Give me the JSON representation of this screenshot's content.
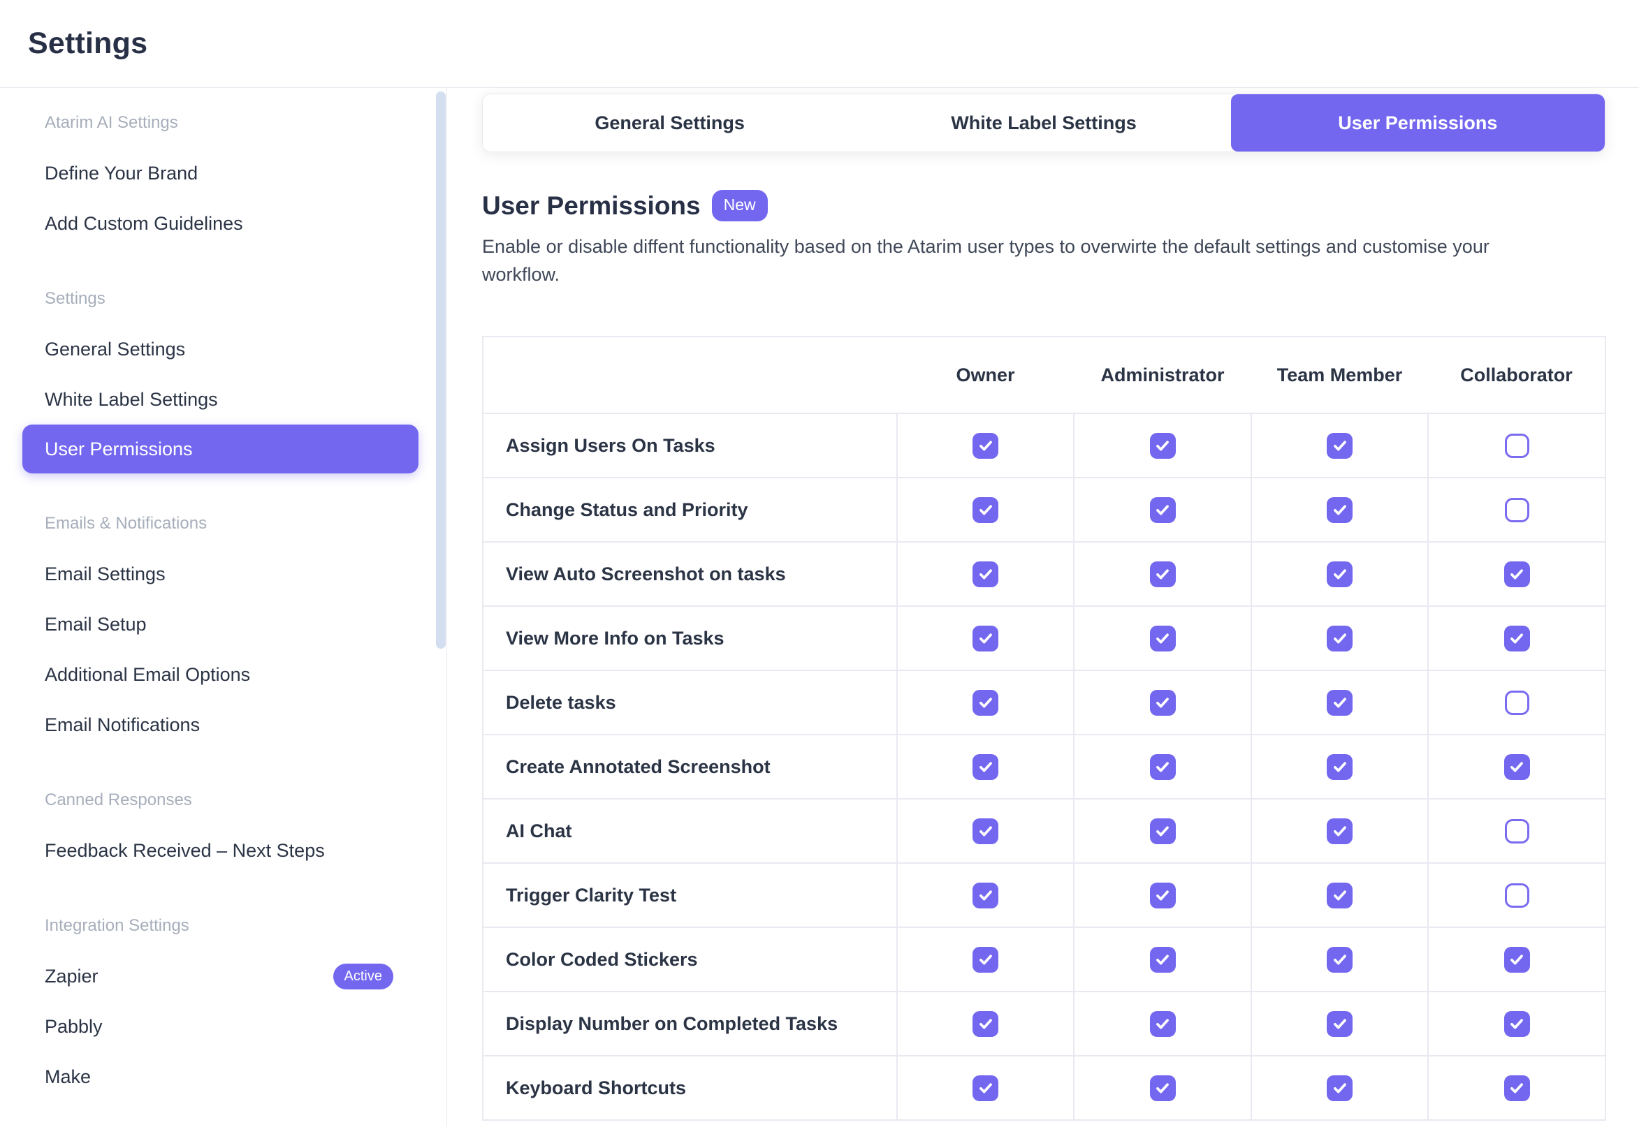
{
  "header": {
    "title": "Settings"
  },
  "colors": {
    "accent": "#7367F0",
    "text_dark": "#2b3445",
    "text_muted": "#a7aebb",
    "description_text": "#3f4757",
    "table_border": "#eae8f1",
    "scroll_track": "#d3dff0"
  },
  "sidebar": {
    "sections": [
      {
        "label": "Atarim AI Settings",
        "items": [
          {
            "label": "Define Your Brand"
          },
          {
            "label": "Add Custom Guidelines"
          }
        ]
      },
      {
        "label": "Settings",
        "items": [
          {
            "label": "General Settings"
          },
          {
            "label": "White Label Settings"
          },
          {
            "label": "User Permissions",
            "active": true
          }
        ]
      },
      {
        "label": "Emails & Notifications",
        "items": [
          {
            "label": "Email Settings"
          },
          {
            "label": "Email Setup"
          },
          {
            "label": "Additional Email Options"
          },
          {
            "label": "Email Notifications"
          }
        ]
      },
      {
        "label": "Canned Responses",
        "items": [
          {
            "label": "Feedback Received – Next Steps"
          }
        ]
      },
      {
        "label": "Integration Settings",
        "items": [
          {
            "label": "Zapier",
            "badge": "Active"
          },
          {
            "label": "Pabbly"
          },
          {
            "label": "Make"
          }
        ]
      }
    ]
  },
  "tabs": [
    {
      "label": "General Settings"
    },
    {
      "label": "White Label Settings"
    },
    {
      "label": "User Permissions",
      "active": true
    }
  ],
  "content": {
    "title": "User Permissions",
    "badge": "New",
    "description": "Enable or disable diffent functionality based on the Atarim user types to overwirte the default settings and customise your workflow."
  },
  "table": {
    "columns": [
      "Owner",
      "Administrator",
      "Team Member",
      "Collaborator"
    ],
    "rows": [
      {
        "label": "Assign Users On Tasks",
        "permissions": [
          true,
          true,
          true,
          false
        ]
      },
      {
        "label": "Change Status and Priority",
        "permissions": [
          true,
          true,
          true,
          false
        ]
      },
      {
        "label": "View Auto Screenshot on tasks",
        "permissions": [
          true,
          true,
          true,
          true
        ]
      },
      {
        "label": "View More Info on Tasks",
        "permissions": [
          true,
          true,
          true,
          true
        ]
      },
      {
        "label": "Delete tasks",
        "permissions": [
          true,
          true,
          true,
          false
        ]
      },
      {
        "label": "Create Annotated Screenshot",
        "permissions": [
          true,
          true,
          true,
          true
        ]
      },
      {
        "label": "AI Chat",
        "permissions": [
          true,
          true,
          true,
          false
        ]
      },
      {
        "label": "Trigger Clarity Test",
        "permissions": [
          true,
          true,
          true,
          false
        ]
      },
      {
        "label": "Color Coded Stickers",
        "permissions": [
          true,
          true,
          true,
          true
        ]
      },
      {
        "label": "Display Number on Completed Tasks",
        "permissions": [
          true,
          true,
          true,
          true
        ]
      },
      {
        "label": "Keyboard Shortcuts",
        "permissions": [
          true,
          true,
          true,
          true
        ]
      }
    ]
  }
}
